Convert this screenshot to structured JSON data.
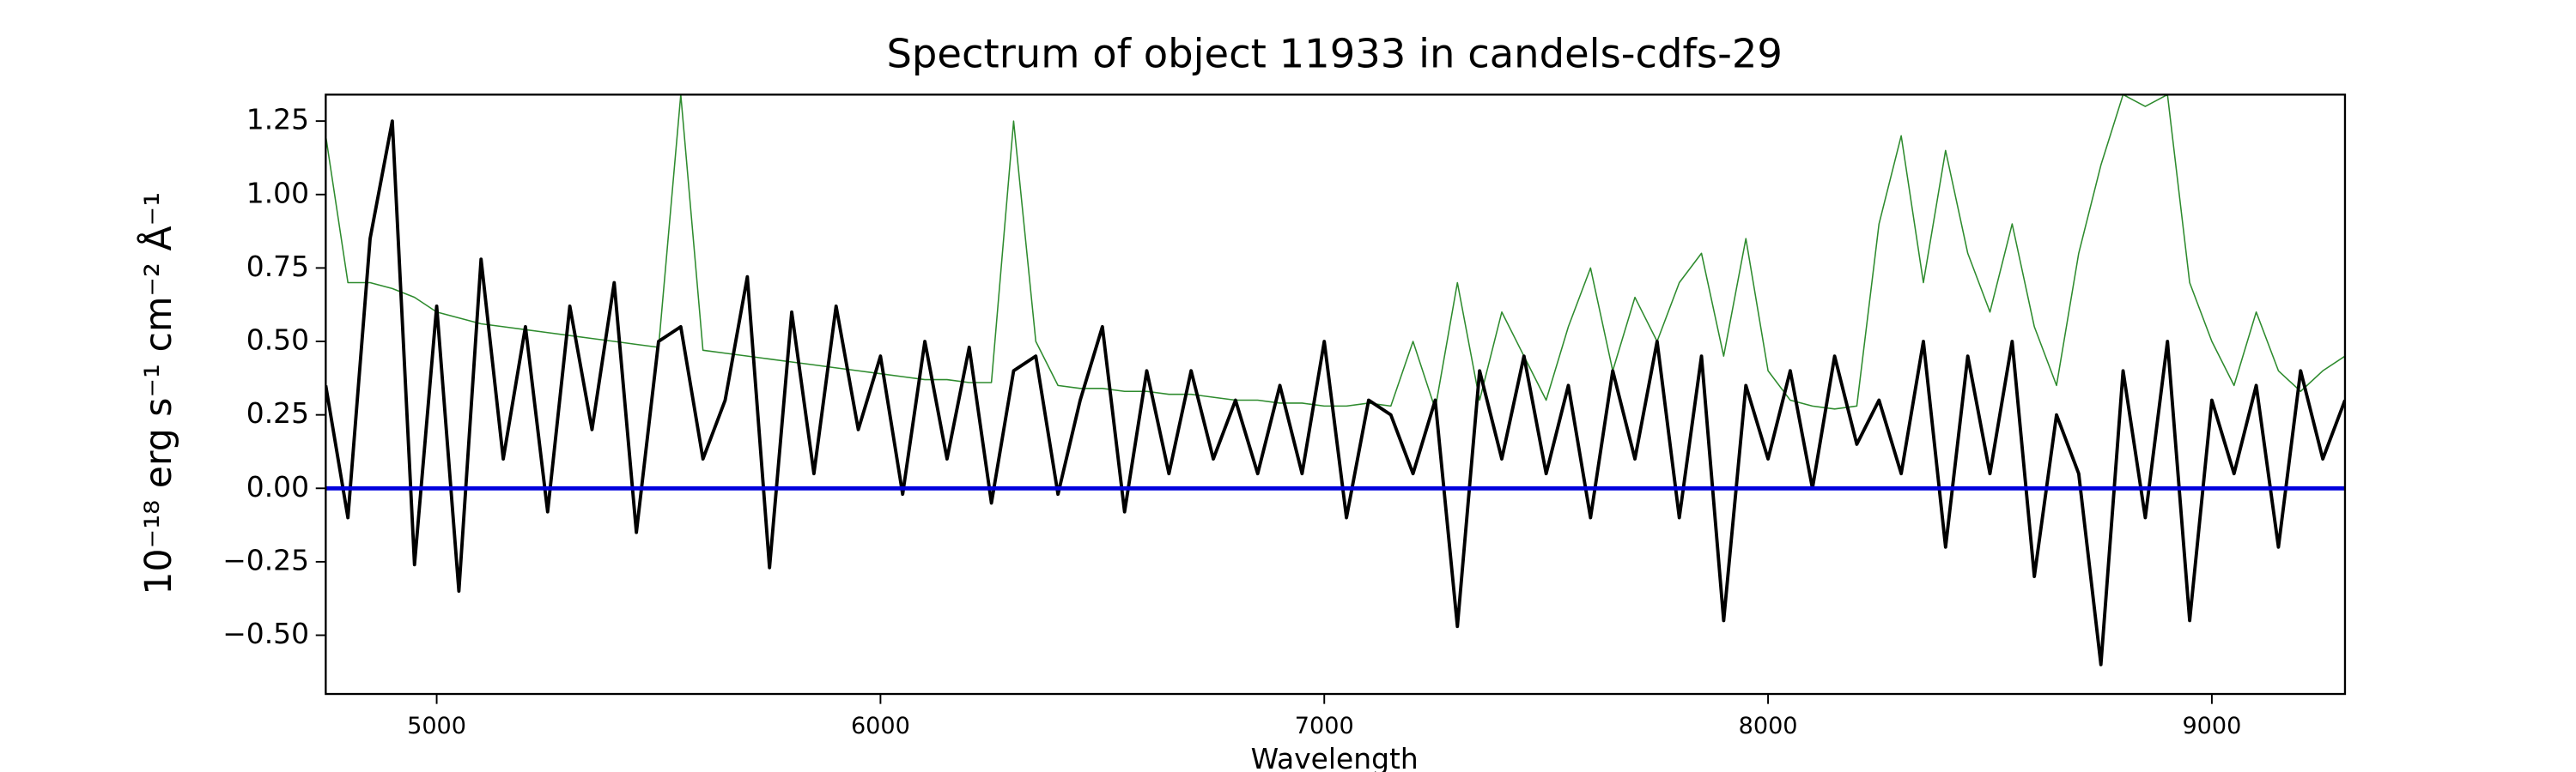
{
  "chart_data": {
    "type": "line",
    "title": "Spectrum of object 11933 in candels-cdfs-29",
    "x_label": "Wavelength",
    "y_label": "10⁻¹⁸ erg s⁻¹ cm⁻² Å⁻¹",
    "xlim": [
      4750,
      9300
    ],
    "ylim": [
      -0.7,
      1.34
    ],
    "xticks": [
      5000,
      6000,
      7000,
      8000,
      9000
    ],
    "yticks": [
      {
        "value": -0.5,
        "label": "−0.50"
      },
      {
        "value": -0.25,
        "label": "−0.25"
      },
      {
        "value": 0,
        "label": "0.00"
      },
      0.25,
      {
        "value": 0.5,
        "label": "0.50"
      },
      0.75,
      {
        "value": 1,
        "label": "1.00"
      },
      1.25
    ],
    "series": [
      {
        "color": "#2e8b2e",
        "x": [
          4750,
          4800,
          4850,
          4900,
          4950,
          5000,
          5050,
          5100,
          5150,
          5200,
          5250,
          5300,
          5350,
          5400,
          5450,
          5500,
          5550,
          5600,
          5650,
          5700,
          5750,
          5800,
          5850,
          5900,
          5950,
          6000,
          6050,
          6100,
          6150,
          6200,
          6250,
          6300,
          6350,
          6400,
          6450,
          6500,
          6550,
          6600,
          6650,
          6700,
          6750,
          6800,
          6850,
          6900,
          6950,
          7000,
          7050,
          7100,
          7150,
          7200,
          7250,
          7300,
          7350,
          7400,
          7450,
          7500,
          7550,
          7600,
          7650,
          7700,
          7750,
          7800,
          7850,
          7900,
          7950,
          8000,
          8050,
          8100,
          8150,
          8200,
          8250,
          8300,
          8350,
          8400,
          8450,
          8500,
          8550,
          8600,
          8650,
          8700,
          8750,
          8800,
          8850,
          8900,
          8950,
          9000,
          9050,
          9100,
          9150,
          9200,
          9250,
          9300
        ],
        "values": [
          1.2,
          0.7,
          0.7,
          0.68,
          0.65,
          0.6,
          0.58,
          0.56,
          0.55,
          0.54,
          0.53,
          0.52,
          0.51,
          0.5,
          0.49,
          0.48,
          1.34,
          0.47,
          0.46,
          0.45,
          0.44,
          0.43,
          0.42,
          0.41,
          0.4,
          0.39,
          0.38,
          0.37,
          0.37,
          0.36,
          0.36,
          1.25,
          0.5,
          0.35,
          0.34,
          0.34,
          0.33,
          0.33,
          0.32,
          0.32,
          0.31,
          0.3,
          0.3,
          0.29,
          0.29,
          0.28,
          0.28,
          0.29,
          0.28,
          0.5,
          0.27,
          0.7,
          0.3,
          0.6,
          0.45,
          0.3,
          0.55,
          0.75,
          0.4,
          0.65,
          0.5,
          0.7,
          0.8,
          0.45,
          0.85,
          0.4,
          0.3,
          0.28,
          0.27,
          0.28,
          0.9,
          1.2,
          0.7,
          1.15,
          0.8,
          0.6,
          0.9,
          0.55,
          0.35,
          0.8,
          1.1,
          1.34,
          1.3,
          1.34,
          0.7,
          0.5,
          0.35,
          0.6,
          0.4,
          0.33,
          0.4,
          0.45
        ],
        "width": 0.8
      },
      {
        "color": "#000000",
        "x": [
          4750,
          4800,
          4850,
          4900,
          4950,
          5000,
          5050,
          5100,
          5150,
          5200,
          5250,
          5300,
          5350,
          5400,
          5450,
          5500,
          5550,
          5600,
          5650,
          5700,
          5750,
          5800,
          5850,
          5900,
          5950,
          6000,
          6050,
          6100,
          6150,
          6200,
          6250,
          6300,
          6350,
          6400,
          6450,
          6500,
          6550,
          6600,
          6650,
          6700,
          6750,
          6800,
          6850,
          6900,
          6950,
          7000,
          7050,
          7100,
          7150,
          7200,
          7250,
          7300,
          7350,
          7400,
          7450,
          7500,
          7550,
          7600,
          7650,
          7700,
          7750,
          7800,
          7850,
          7900,
          7950,
          8000,
          8050,
          8100,
          8150,
          8200,
          8250,
          8300,
          8350,
          8400,
          8450,
          8500,
          8550,
          8600,
          8650,
          8700,
          8750,
          8800,
          8850,
          8900,
          8950,
          9000,
          9050,
          9100,
          9150,
          9200,
          9250,
          9300
        ],
        "values": [
          0.35,
          -0.1,
          0.85,
          1.25,
          -0.26,
          0.62,
          -0.35,
          0.78,
          0.1,
          0.55,
          -0.08,
          0.62,
          0.2,
          0.7,
          -0.15,
          0.5,
          0.55,
          0.1,
          0.3,
          0.72,
          -0.27,
          0.6,
          0.05,
          0.62,
          0.2,
          0.45,
          -0.02,
          0.5,
          0.1,
          0.48,
          -0.05,
          0.4,
          0.45,
          -0.02,
          0.3,
          0.55,
          -0.08,
          0.4,
          0.05,
          0.4,
          0.1,
          0.3,
          0.05,
          0.35,
          0.05,
          0.5,
          -0.1,
          0.3,
          0.25,
          0.05,
          0.3,
          -0.47,
          0.4,
          0.1,
          0.45,
          0.05,
          0.35,
          -0.1,
          0.4,
          0.1,
          0.5,
          -0.1,
          0.45,
          -0.45,
          0.35,
          0.1,
          0.4,
          0,
          0.45,
          0.15,
          0.3,
          0.05,
          0.5,
          -0.2,
          0.45,
          0.05,
          0.5,
          -0.3,
          0.25,
          0.05,
          -0.6,
          0.4,
          -0.1,
          0.5,
          -0.45,
          0.3,
          0.05,
          0.35,
          -0.2,
          0.4,
          0.1,
          0.3
        ],
        "width": 2
      },
      {
        "color": "#0000dd",
        "x": [
          4750,
          9300
        ],
        "values": [
          0,
          0
        ],
        "width": 2.5
      }
    ]
  }
}
